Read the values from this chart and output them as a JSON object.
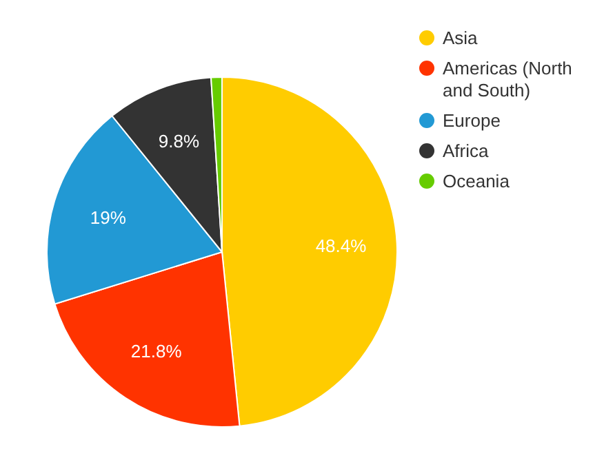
{
  "chart_data": {
    "type": "pie",
    "categories": [
      "Asia",
      "Americas (North and South)",
      "Europe",
      "Africa",
      "Oceania"
    ],
    "values": [
      48.4,
      21.8,
      19,
      9.8,
      1.0
    ],
    "colors": [
      "#ffcc00",
      "#ff3300",
      "#2299d4",
      "#333333",
      "#66cc00"
    ],
    "value_labels": [
      "48.4%",
      "21.8%",
      "19%",
      "9.8%",
      null
    ],
    "legend": "top right"
  }
}
